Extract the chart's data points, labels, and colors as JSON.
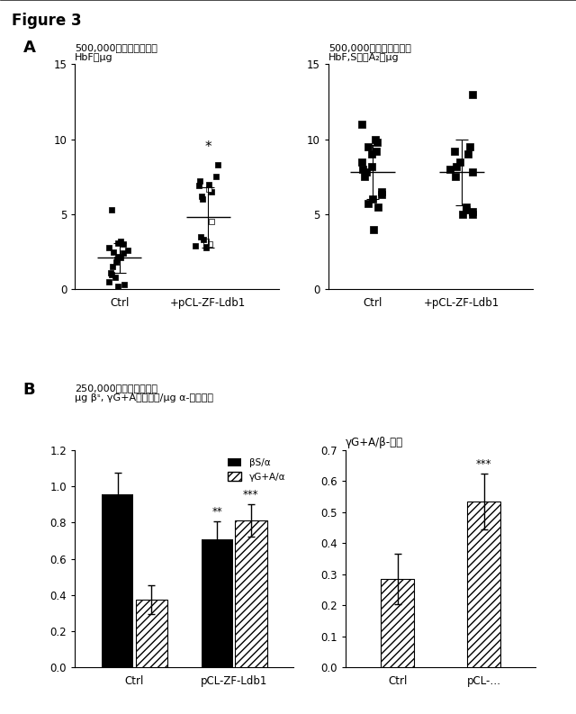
{
  "fig_title": "Figure 3",
  "panel_A_left": {
    "title_line1": "500,000赤血球細胞中の",
    "title_line2": "HbFのμg",
    "xlabel_ctrl": "Ctrl",
    "xlabel_treated": "+pCL-ZF-Ldb1",
    "ylim": [
      0,
      15
    ],
    "yticks": [
      0,
      5,
      10,
      15
    ],
    "ctrl_points": [
      0.2,
      0.3,
      0.5,
      0.8,
      1.0,
      1.1,
      1.5,
      1.8,
      2.0,
      2.1,
      2.2,
      2.4,
      2.5,
      2.6,
      2.8,
      3.0,
      3.1,
      3.2,
      5.3
    ],
    "ctrl_mean": 2.1,
    "ctrl_sd": 1.0,
    "treated_points": [
      2.8,
      2.9,
      3.0,
      3.1,
      3.2,
      3.3,
      3.5,
      4.5,
      6.0,
      6.2,
      6.5,
      6.7,
      6.9,
      7.0,
      7.2,
      7.5,
      8.3
    ],
    "treated_mean": 4.8,
    "treated_sd": 2.0,
    "significance": "*"
  },
  "panel_A_right": {
    "title_line1": "500,000赤血球細胞中の",
    "title_line2": "HbF,S及びA₂のμg",
    "xlabel_ctrl": "Ctrl",
    "xlabel_treated": "+pCL-ZF-Ldb1",
    "ylim": [
      0,
      15
    ],
    "yticks": [
      0,
      5,
      10,
      15
    ],
    "ctrl_points": [
      4.0,
      5.5,
      5.7,
      6.0,
      6.3,
      6.5,
      7.5,
      7.8,
      8.0,
      8.2,
      8.5,
      9.0,
      9.2,
      9.5,
      9.8,
      10.0,
      11.0
    ],
    "ctrl_mean": 7.8,
    "ctrl_sd": 1.8,
    "treated_points": [
      5.0,
      5.0,
      5.2,
      5.3,
      5.5,
      7.5,
      7.8,
      8.0,
      8.2,
      8.5,
      9.0,
      9.2,
      9.5,
      13.0
    ],
    "treated_mean": 7.8,
    "treated_sd": 2.2,
    "significance": null
  },
  "panel_B_left": {
    "title_line1": "250,000赤血球細胞中の",
    "title_line2": "μg βˢ, γG+Aグロビン/μg α-グロビン",
    "categories": [
      "Ctrl",
      "pCL-ZF-Ldb1"
    ],
    "bs_values": [
      0.955,
      0.705
    ],
    "bs_errors": [
      0.12,
      0.1
    ],
    "gamma_values": [
      0.375,
      0.81
    ],
    "gamma_errors": [
      0.08,
      0.09
    ],
    "bs_sig2": "**",
    "gamma_sig": "***",
    "ylim": [
      0,
      1.2
    ],
    "yticks": [
      0.0,
      0.2,
      0.4,
      0.6,
      0.8,
      1.0,
      1.2
    ],
    "legend_bs": "βS/α",
    "legend_gamma": "γG+A/α"
  },
  "panel_B_right": {
    "title": "γG+A/β-様鎖",
    "categories": [
      "Ctrl",
      "pCL-…"
    ],
    "values": [
      0.285,
      0.535
    ],
    "errors": [
      0.08,
      0.09
    ],
    "significance": "***",
    "ylim": [
      0,
      0.7
    ],
    "yticks": [
      0.0,
      0.1,
      0.2,
      0.3,
      0.4,
      0.5,
      0.6,
      0.7
    ]
  },
  "background_color": "#ffffff"
}
